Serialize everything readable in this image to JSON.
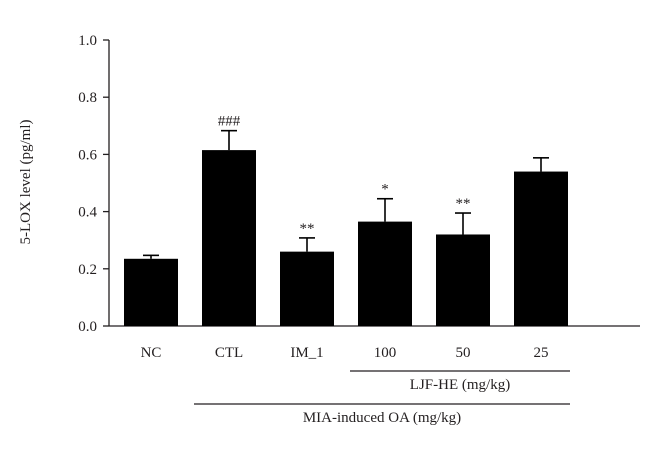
{
  "chart_data": {
    "type": "bar",
    "ylabel": "5-LOX level (pg/ml)",
    "xlabel": "",
    "ylim": [
      0,
      1.0
    ],
    "yticks": [
      "0.0",
      "0.2",
      "0.4",
      "0.6",
      "0.8",
      "1.0"
    ],
    "categories": [
      "NC",
      "CTL",
      "IM_1",
      "100",
      "50",
      "25"
    ],
    "values": [
      0.235,
      0.615,
      0.26,
      0.365,
      0.32,
      0.54
    ],
    "errors": [
      0.012,
      0.068,
      0.048,
      0.08,
      0.075,
      0.048
    ],
    "significance": [
      "",
      "###",
      "**",
      "*",
      "**",
      ""
    ],
    "bar_color": "#000000",
    "groups": [
      {
        "label": "LJF-HE (mg/kg)",
        "from_category": 3,
        "to_category": 5
      },
      {
        "label": "MIA-induced OA (mg/kg)",
        "from_category": 1,
        "to_category": 5
      }
    ]
  }
}
